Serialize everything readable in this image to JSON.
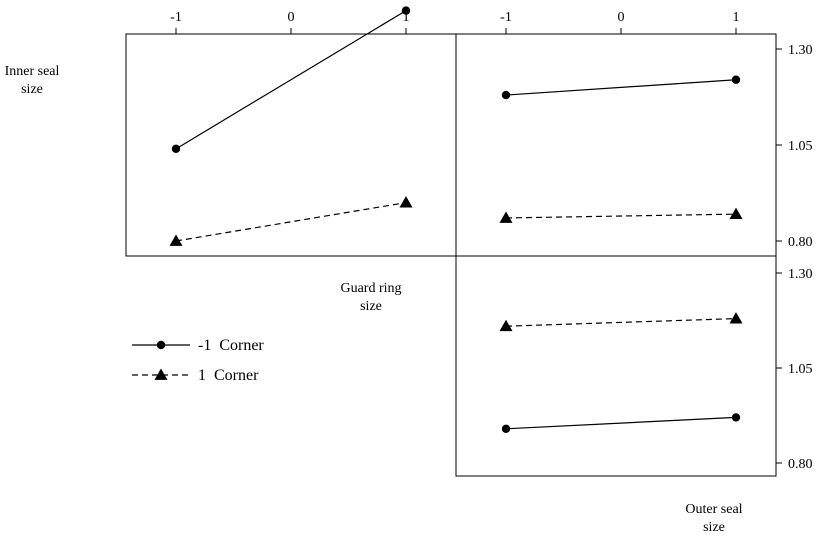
{
  "chart_data": {
    "type": "line",
    "title": "",
    "top_tick_labels": [
      "-1",
      "0",
      "1"
    ],
    "right_tick_labels": [
      "1.30",
      "1.05",
      "0.80"
    ],
    "ylim": [
      0.8,
      1.3
    ],
    "factor_labels": {
      "inner_seal": [
        "Inner seal",
        "size"
      ],
      "guard_ring": [
        "Guard ring",
        "size"
      ],
      "outer_seal": [
        "Outer seal",
        "size"
      ]
    },
    "legend": [
      {
        "label": "-1  Corner",
        "marker": "circle",
        "line": "solid"
      },
      {
        "label": "1  Corner",
        "marker": "triangle",
        "line": "dashed"
      }
    ],
    "panels": [
      {
        "id": "inner-seal-by-guard-ring",
        "x": [
          -1,
          1
        ],
        "series": [
          {
            "values": [
              1.04,
              1.4
            ],
            "marker": "circle",
            "line": "solid"
          },
          {
            "values": [
              0.8,
              0.9
            ],
            "marker": "triangle",
            "line": "dashed"
          }
        ]
      },
      {
        "id": "inner-seal-by-outer-seal",
        "x": [
          -1,
          1
        ],
        "series": [
          {
            "values": [
              1.18,
              1.22
            ],
            "marker": "circle",
            "line": "solid"
          },
          {
            "values": [
              0.86,
              0.87
            ],
            "marker": "triangle",
            "line": "dashed"
          }
        ]
      },
      {
        "id": "guard-ring-by-outer-seal",
        "x": [
          -1,
          1
        ],
        "series": [
          {
            "values": [
              0.89,
              0.92
            ],
            "marker": "circle",
            "line": "solid"
          },
          {
            "values": [
              1.16,
              1.18
            ],
            "marker": "triangle",
            "line": "dashed"
          }
        ]
      }
    ]
  }
}
